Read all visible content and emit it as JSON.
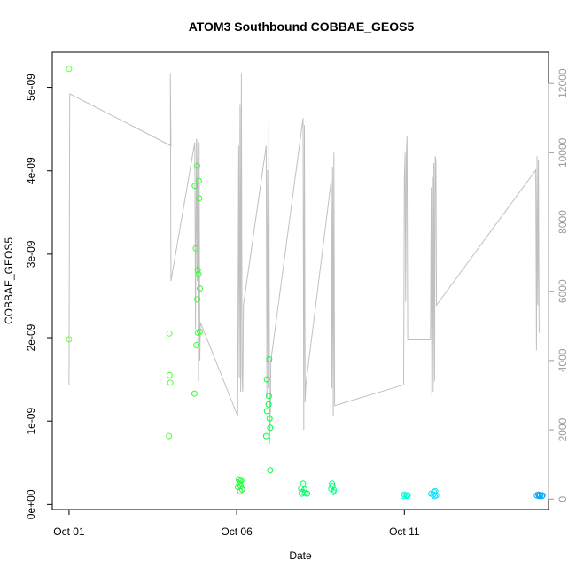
{
  "chart_data": {
    "type": "scatter",
    "title": "ATOM3 Southbound COBBAE_GEOS5",
    "xlabel": "Date",
    "ylabel": "COBBAE_GEOS5",
    "x_ticks": [
      {
        "label": "Oct 01",
        "value": 0
      },
      {
        "label": "Oct 06",
        "value": 5
      },
      {
        "label": "Oct 11",
        "value": 10
      }
    ],
    "xlim": [
      -0.5,
      14.3
    ],
    "y_ticks": [
      {
        "label": "0e+00",
        "value": 0
      },
      {
        "label": "1e-09",
        "value": 1e-09
      },
      {
        "label": "2e-09",
        "value": 2e-09
      },
      {
        "label": "3e-09",
        "value": 3e-09
      },
      {
        "label": "4e-09",
        "value": 4e-09
      },
      {
        "label": "5e-09",
        "value": 5e-09
      }
    ],
    "ylim": [
      -6e-11,
      5.42e-09
    ],
    "y2_ticks": [
      {
        "label": "0",
        "value": 0
      },
      {
        "label": "2000",
        "value": 2000
      },
      {
        "label": "4000",
        "value": 4000
      },
      {
        "label": "6000",
        "value": 6000
      },
      {
        "label": "8000",
        "value": 8000
      },
      {
        "label": "10000",
        "value": 10000
      },
      {
        "label": "12000",
        "value": 12000
      }
    ],
    "y2lim": [
      -300,
      12900
    ],
    "grid": false,
    "secondary_line_color": "#c0c0c0",
    "points": [
      {
        "x": 0.0,
        "y": 5.22e-09,
        "color": "#66ff33"
      },
      {
        "x": 0.0,
        "y": 1.98e-09,
        "color": "#66ff33"
      },
      {
        "x": 2.99,
        "y": 2.05e-09,
        "color": "#4dff33"
      },
      {
        "x": 3.0,
        "y": 1.55e-09,
        "color": "#4dff33"
      },
      {
        "x": 3.02,
        "y": 1.46e-09,
        "color": "#4dff33"
      },
      {
        "x": 2.98,
        "y": 8.2e-10,
        "color": "#4dff33"
      },
      {
        "x": 3.75,
        "y": 3.82e-09,
        "color": "#33ff33"
      },
      {
        "x": 3.82,
        "y": 4.06e-09,
        "color": "#33ff33"
      },
      {
        "x": 3.87,
        "y": 3.88e-09,
        "color": "#33ff33"
      },
      {
        "x": 3.88,
        "y": 3.67e-09,
        "color": "#33ff33"
      },
      {
        "x": 3.78,
        "y": 3.07e-09,
        "color": "#33ff33"
      },
      {
        "x": 3.84,
        "y": 2.81e-09,
        "color": "#33ff33"
      },
      {
        "x": 3.86,
        "y": 2.76e-09,
        "color": "#33ff33"
      },
      {
        "x": 3.9,
        "y": 2.59e-09,
        "color": "#33ff33"
      },
      {
        "x": 3.82,
        "y": 2.46e-09,
        "color": "#33ff33"
      },
      {
        "x": 3.84,
        "y": 2.06e-09,
        "color": "#33ff33"
      },
      {
        "x": 3.9,
        "y": 2.07e-09,
        "color": "#33ff33"
      },
      {
        "x": 3.8,
        "y": 1.91e-09,
        "color": "#33ff33"
      },
      {
        "x": 3.74,
        "y": 1.33e-09,
        "color": "#33ff33"
      },
      {
        "x": 5.06,
        "y": 3e-10,
        "color": "#1aff33"
      },
      {
        "x": 5.1,
        "y": 2.8e-10,
        "color": "#1aff33"
      },
      {
        "x": 5.14,
        "y": 2.9e-10,
        "color": "#1aff33"
      },
      {
        "x": 5.08,
        "y": 2.5e-10,
        "color": "#1aff33"
      },
      {
        "x": 5.12,
        "y": 2.2e-10,
        "color": "#1aff33"
      },
      {
        "x": 5.04,
        "y": 2.1e-10,
        "color": "#1aff33"
      },
      {
        "x": 5.16,
        "y": 1.8e-10,
        "color": "#1aff33"
      },
      {
        "x": 5.1,
        "y": 1.6e-10,
        "color": "#1aff33"
      },
      {
        "x": 5.9,
        "y": 1.5e-09,
        "color": "#00ff40"
      },
      {
        "x": 5.97,
        "y": 1.74e-09,
        "color": "#00ff40"
      },
      {
        "x": 5.96,
        "y": 1.3e-09,
        "color": "#00ff40"
      },
      {
        "x": 5.95,
        "y": 1.2e-09,
        "color": "#00ff40"
      },
      {
        "x": 5.9,
        "y": 1.12e-09,
        "color": "#00ff40"
      },
      {
        "x": 5.98,
        "y": 1.03e-09,
        "color": "#00ff40"
      },
      {
        "x": 6.0,
        "y": 9.2e-10,
        "color": "#00ff40"
      },
      {
        "x": 5.88,
        "y": 8.2e-10,
        "color": "#00ff40"
      },
      {
        "x": 6.0,
        "y": 4.1e-10,
        "color": "#00ff40"
      },
      {
        "x": 6.98,
        "y": 2.5e-10,
        "color": "#00ff66"
      },
      {
        "x": 6.92,
        "y": 1.9e-10,
        "color": "#00ff66"
      },
      {
        "x": 7.02,
        "y": 1.8e-10,
        "color": "#00ff66"
      },
      {
        "x": 6.96,
        "y": 1.5e-10,
        "color": "#00ff66"
      },
      {
        "x": 7.04,
        "y": 1.4e-10,
        "color": "#00ff66"
      },
      {
        "x": 7.1,
        "y": 1.3e-10,
        "color": "#00ff66"
      },
      {
        "x": 6.94,
        "y": 1.3e-10,
        "color": "#00ff66"
      },
      {
        "x": 7.84,
        "y": 2.5e-10,
        "color": "#00ff80"
      },
      {
        "x": 7.86,
        "y": 2.2e-10,
        "color": "#00ff80"
      },
      {
        "x": 7.82,
        "y": 1.9e-10,
        "color": "#00ff80"
      },
      {
        "x": 7.9,
        "y": 1.7e-10,
        "color": "#00ff80"
      },
      {
        "x": 7.88,
        "y": 1.5e-10,
        "color": "#00ff80"
      },
      {
        "x": 10.0,
        "y": 1.2e-10,
        "color": "#00ffd9"
      },
      {
        "x": 10.05,
        "y": 1.1e-10,
        "color": "#00ffd9"
      },
      {
        "x": 10.1,
        "y": 1.1e-10,
        "color": "#00ffd9"
      },
      {
        "x": 9.98,
        "y": 1e-10,
        "color": "#00ffd9"
      },
      {
        "x": 10.08,
        "y": 1e-10,
        "color": "#00ffd9"
      },
      {
        "x": 10.8,
        "y": 1.3e-10,
        "color": "#00e5ff"
      },
      {
        "x": 10.88,
        "y": 1.5e-10,
        "color": "#00e5ff"
      },
      {
        "x": 10.92,
        "y": 1.6e-10,
        "color": "#00e5ff"
      },
      {
        "x": 10.86,
        "y": 1.2e-10,
        "color": "#00e5ff"
      },
      {
        "x": 10.95,
        "y": 1.1e-10,
        "color": "#00e5ff"
      },
      {
        "x": 10.9,
        "y": 1e-10,
        "color": "#00e5ff"
      },
      {
        "x": 14.0,
        "y": 1.2e-10,
        "color": "#00a6ff"
      },
      {
        "x": 14.05,
        "y": 1.1e-10,
        "color": "#00a6ff"
      },
      {
        "x": 14.1,
        "y": 1e-10,
        "color": "#00a6ff"
      },
      {
        "x": 13.95,
        "y": 1.1e-10,
        "color": "#00a6ff"
      },
      {
        "x": 14.12,
        "y": 1.1e-10,
        "color": "#00a6ff"
      },
      {
        "x": 14.02,
        "y": 1e-10,
        "color": "#00a6ff"
      }
    ],
    "secondary_line": [
      [
        0.0,
        3300
      ],
      [
        0.02,
        11700
      ],
      [
        3.04,
        10200
      ],
      [
        3.02,
        12300
      ],
      [
        3.04,
        6300
      ],
      [
        3.75,
        10300
      ],
      [
        3.77,
        4900
      ],
      [
        3.8,
        10400
      ],
      [
        3.82,
        6300
      ],
      [
        3.84,
        10400
      ],
      [
        3.86,
        3400
      ],
      [
        3.88,
        10300
      ],
      [
        3.9,
        4000
      ],
      [
        3.92,
        5100
      ],
      [
        5.03,
        2400
      ],
      [
        5.06,
        10200
      ],
      [
        5.08,
        3500
      ],
      [
        5.1,
        11400
      ],
      [
        5.12,
        3100
      ],
      [
        5.14,
        12300
      ],
      [
        5.16,
        3500
      ],
      [
        5.18,
        3100
      ],
      [
        5.2,
        5600
      ],
      [
        5.88,
        10200
      ],
      [
        5.9,
        2900
      ],
      [
        5.92,
        9500
      ],
      [
        5.94,
        3200
      ],
      [
        5.96,
        11000
      ],
      [
        5.98,
        1600
      ],
      [
        6.0,
        2200
      ],
      [
        6.02,
        4000
      ],
      [
        6.98,
        11000
      ],
      [
        7.0,
        2000
      ],
      [
        7.02,
        10800
      ],
      [
        7.04,
        2800
      ],
      [
        7.06,
        3300
      ],
      [
        7.82,
        9200
      ],
      [
        7.84,
        3200
      ],
      [
        7.86,
        9600
      ],
      [
        7.88,
        2400
      ],
      [
        7.9,
        10000
      ],
      [
        7.92,
        2700
      ],
      [
        9.98,
        3300
      ],
      [
        10.0,
        9200
      ],
      [
        10.02,
        10000
      ],
      [
        10.04,
        5700
      ],
      [
        10.06,
        10000
      ],
      [
        10.08,
        10500
      ],
      [
        10.1,
        4600
      ],
      [
        10.78,
        4600
      ],
      [
        10.8,
        9000
      ],
      [
        10.82,
        3000
      ],
      [
        10.84,
        9300
      ],
      [
        10.86,
        3100
      ],
      [
        10.88,
        9700
      ],
      [
        10.9,
        3400
      ],
      [
        10.92,
        9900
      ],
      [
        10.94,
        9800
      ],
      [
        10.96,
        5600
      ],
      [
        13.92,
        9500
      ],
      [
        13.94,
        4300
      ],
      [
        13.96,
        9900
      ],
      [
        13.98,
        5600
      ],
      [
        14.0,
        9800
      ],
      [
        14.02,
        4800
      ]
    ]
  }
}
